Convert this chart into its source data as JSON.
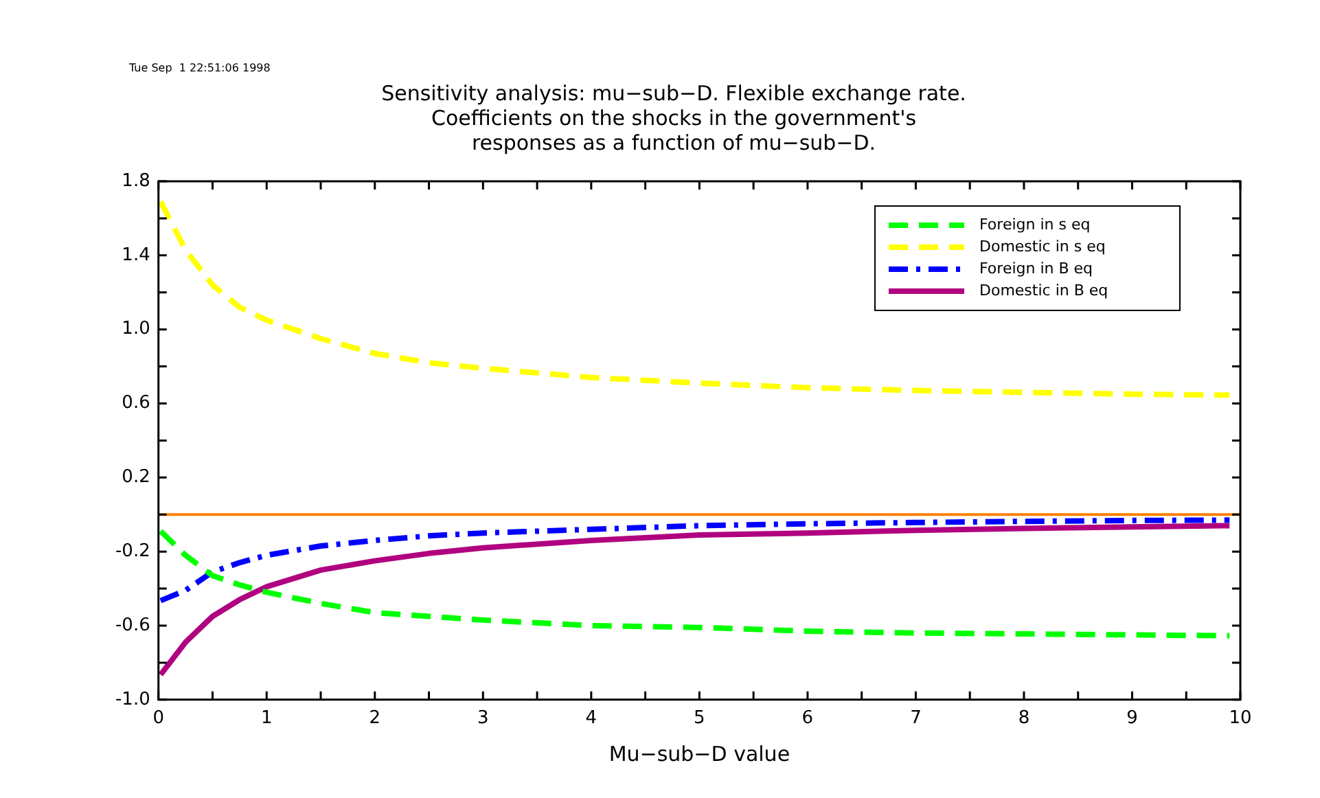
{
  "chart_data": {
    "type": "line",
    "title": "Sensitivity analysis: mu−sub−D. Flexible exchange rate.\nCoefficients on the shocks in the government's\nresponses as a function of mu−sub−D.",
    "xlabel": "Mu−sub−D value",
    "annotations": [
      "Tue Sep  1 22:51:06 1998"
    ],
    "x": [
      0.02,
      0.25,
      0.5,
      0.75,
      1,
      1.5,
      2,
      2.5,
      3,
      4,
      5,
      6,
      7,
      8,
      9,
      9.9
    ],
    "series": [
      {
        "name": "Foreign in s eq",
        "color": "#00ff00",
        "line_style": "dashed",
        "values": [
          -0.09,
          -0.22,
          -0.33,
          -0.38,
          -0.42,
          -0.48,
          -0.53,
          -0.55,
          -0.57,
          -0.6,
          -0.61,
          -0.63,
          -0.64,
          -0.645,
          -0.65,
          -0.655
        ]
      },
      {
        "name": "Domestic in s eq",
        "color": "#ffff00",
        "line_style": "dashed",
        "values": [
          1.69,
          1.43,
          1.24,
          1.12,
          1.05,
          0.95,
          0.87,
          0.82,
          0.79,
          0.74,
          0.71,
          0.685,
          0.67,
          0.66,
          0.65,
          0.645
        ]
      },
      {
        "name": "Foreign in B eq",
        "color": "#0000ff",
        "line_style": "dashdot",
        "values": [
          -0.465,
          -0.41,
          -0.31,
          -0.26,
          -0.22,
          -0.17,
          -0.14,
          -0.115,
          -0.1,
          -0.08,
          -0.06,
          -0.05,
          -0.043,
          -0.037,
          -0.032,
          -0.03
        ]
      },
      {
        "name": "Domestic in B eq",
        "color": "#b0007f",
        "line_style": "solid",
        "values": [
          -0.865,
          -0.69,
          -0.55,
          -0.46,
          -0.39,
          -0.3,
          -0.25,
          -0.21,
          -0.18,
          -0.14,
          -0.11,
          -0.1,
          -0.085,
          -0.075,
          -0.067,
          -0.06
        ]
      }
    ],
    "xlim": [
      0,
      10
    ],
    "xticks": [
      0,
      {
        "value": 0.5,
        "label": null
      },
      1,
      {
        "value": 1.5,
        "label": null
      },
      2,
      {
        "value": 2.5,
        "label": null
      },
      3,
      {
        "value": 3.5,
        "label": null
      },
      4,
      {
        "value": 4.5,
        "label": null
      },
      5,
      {
        "value": 5.5,
        "label": null
      },
      6,
      {
        "value": 6.5,
        "label": null
      },
      7,
      {
        "value": 7.5,
        "label": null
      },
      8,
      {
        "value": 8.5,
        "label": null
      },
      9,
      {
        "value": 9.5,
        "label": null
      },
      10
    ],
    "ylim": [
      -1,
      1.8
    ],
    "yticks": [
      {
        "value": -1,
        "label": "-1.0"
      },
      {
        "value": -0.8,
        "label": null
      },
      -0.6,
      {
        "value": -0.4,
        "label": null
      },
      -0.2,
      {
        "value": 0,
        "label": null
      },
      0.2,
      {
        "value": 0.4,
        "label": null
      },
      0.6,
      {
        "value": 0.8,
        "label": null
      },
      {
        "value": 1,
        "label": "1.0"
      },
      {
        "value": 1.2,
        "label": null
      },
      1.4,
      {
        "value": 1.6,
        "label": null
      },
      1.8
    ],
    "ref_lines": [
      {
        "axis": "y",
        "value": 0,
        "color": "#ff8000"
      }
    ],
    "grid": false,
    "legend": "top right"
  }
}
